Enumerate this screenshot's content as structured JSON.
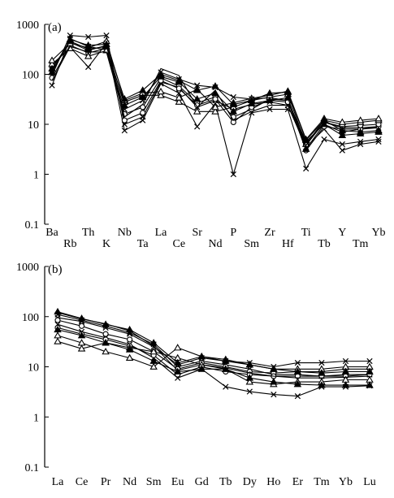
{
  "chart_data": [
    {
      "type": "line",
      "panel_label": "(a)",
      "yscale": "log",
      "ylim": [
        0.1,
        1000
      ],
      "ytick_labels": [
        "1000",
        "100",
        "10",
        "1",
        "0.1"
      ],
      "ytick_values": [
        1000,
        100,
        10,
        1,
        0.1
      ],
      "categories": [
        "Ba",
        "Rb",
        "Th",
        "K",
        "Nb",
        "Ta",
        "La",
        "Ce",
        "Sr",
        "Nd",
        "P",
        "Sm",
        "Zr",
        "Hf",
        "Ti",
        "Tb",
        "Y",
        "Tm",
        "Yb"
      ],
      "series": [
        {
          "marker": "cross",
          "values": [
            60,
            520,
            360,
            310,
            20,
            30,
            110,
            80,
            60,
            55,
            35,
            32,
            34,
            30,
            4.5,
            10,
            7,
            8,
            8.5
          ]
        },
        {
          "marker": "cross",
          "values": [
            95,
            600,
            560,
            600,
            10,
            14,
            70,
            55,
            22,
            30,
            20,
            25,
            28,
            24,
            3.5,
            8,
            3,
            4,
            4.5
          ]
        },
        {
          "marker": "cross",
          "values": [
            150,
            350,
            140,
            420,
            7.5,
            12,
            65,
            42,
            9,
            26,
            1,
            17,
            20,
            20,
            1.3,
            5,
            4,
            4.5,
            5
          ]
        },
        {
          "marker": "circle",
          "values": [
            85,
            380,
            270,
            330,
            16,
            22,
            85,
            58,
            27,
            35,
            14,
            20,
            32,
            30,
            3,
            9,
            8,
            8,
            9
          ]
        },
        {
          "marker": "circle",
          "values": [
            120,
            440,
            300,
            380,
            12,
            17,
            75,
            52,
            24,
            32,
            11,
            22,
            30,
            28,
            4,
            11,
            9,
            9.5,
            10
          ]
        },
        {
          "marker": "triangle",
          "values": [
            160,
            330,
            230,
            300,
            28,
            38,
            38,
            28,
            18,
            18,
            22,
            30,
            35,
            40,
            4,
            12,
            10,
            11,
            12
          ]
        },
        {
          "marker": "triangle",
          "values": [
            190,
            420,
            340,
            460,
            30,
            42,
            45,
            34,
            50,
            22,
            27,
            33,
            38,
            46,
            5,
            13,
            11,
            12,
            13
          ]
        },
        {
          "marker": "filled-triangle",
          "values": [
            130,
            460,
            320,
            360,
            24,
            35,
            90,
            70,
            32,
            42,
            18,
            26,
            30,
            34,
            3.2,
            10,
            6,
            6.5,
            7
          ]
        },
        {
          "marker": "filled-triangle",
          "values": [
            110,
            500,
            380,
            400,
            32,
            48,
            100,
            75,
            48,
            58,
            25,
            30,
            42,
            44,
            4.8,
            12,
            7.5,
            7,
            7.5
          ]
        },
        {
          "marker": "none",
          "values": [
            75,
            360,
            280,
            280,
            14,
            25,
            130,
            95,
            22,
            48,
            12,
            18,
            24,
            24,
            3.8,
            11,
            8.5,
            8.5,
            9
          ]
        }
      ]
    },
    {
      "type": "line",
      "panel_label": "(b)",
      "yscale": "log",
      "ylim": [
        0.1,
        1000
      ],
      "ytick_labels": [
        "1000",
        "100",
        "10",
        "1",
        "0.1"
      ],
      "ytick_values": [
        1000,
        100,
        10,
        1,
        0.1
      ],
      "categories": [
        "La",
        "Ce",
        "Pr",
        "Nd",
        "Sm",
        "Eu",
        "Gd",
        "Tb",
        "Dy",
        "Ho",
        "Er",
        "Tm",
        "Yb",
        "Lu"
      ],
      "series": [
        {
          "marker": "cross",
          "values": [
            110,
            85,
            65,
            48,
            28,
            10,
            13,
            11,
            9,
            7,
            7,
            6.5,
            7,
            7
          ]
        },
        {
          "marker": "cross",
          "values": [
            70,
            50,
            38,
            28,
            15,
            6,
            9,
            4,
            3.2,
            2.8,
            2.6,
            4,
            4,
            4.2
          ]
        },
        {
          "marker": "cross",
          "values": [
            95,
            80,
            60,
            45,
            25,
            11,
            15,
            13,
            12,
            10,
            12,
            12,
            13,
            13
          ]
        },
        {
          "marker": "circle",
          "values": [
            85,
            65,
            45,
            35,
            20,
            9,
            12,
            10,
            8,
            7.5,
            8,
            8,
            9,
            9
          ]
        },
        {
          "marker": "circle",
          "values": [
            60,
            45,
            35,
            26,
            17,
            7,
            10,
            8,
            7,
            6.5,
            6.5,
            6.5,
            6.5,
            7
          ]
        },
        {
          "marker": "triangle",
          "values": [
            42,
            30,
            20,
            15,
            10,
            24,
            16,
            14,
            11,
            9,
            9,
            9,
            10,
            10
          ]
        },
        {
          "marker": "triangle",
          "values": [
            32,
            23,
            30,
            24,
            20,
            15,
            11,
            9,
            5,
            4.5,
            5,
            5,
            5.5,
            5.5
          ]
        },
        {
          "marker": "filled-triangle",
          "values": [
            125,
            92,
            70,
            55,
            30,
            12,
            16,
            13,
            11,
            9,
            8,
            7.5,
            8,
            8
          ]
        },
        {
          "marker": "filled-triangle",
          "values": [
            55,
            42,
            30,
            22,
            13,
            8,
            9,
            9,
            6,
            5,
            4.5,
            4.3,
            4.3,
            4.3
          ]
        },
        {
          "marker": "none",
          "values": [
            120,
            90,
            72,
            52,
            26,
            8.5,
            11,
            9.5,
            7.5,
            6.5,
            6,
            6,
            6.2,
            6.5
          ]
        }
      ]
    }
  ]
}
